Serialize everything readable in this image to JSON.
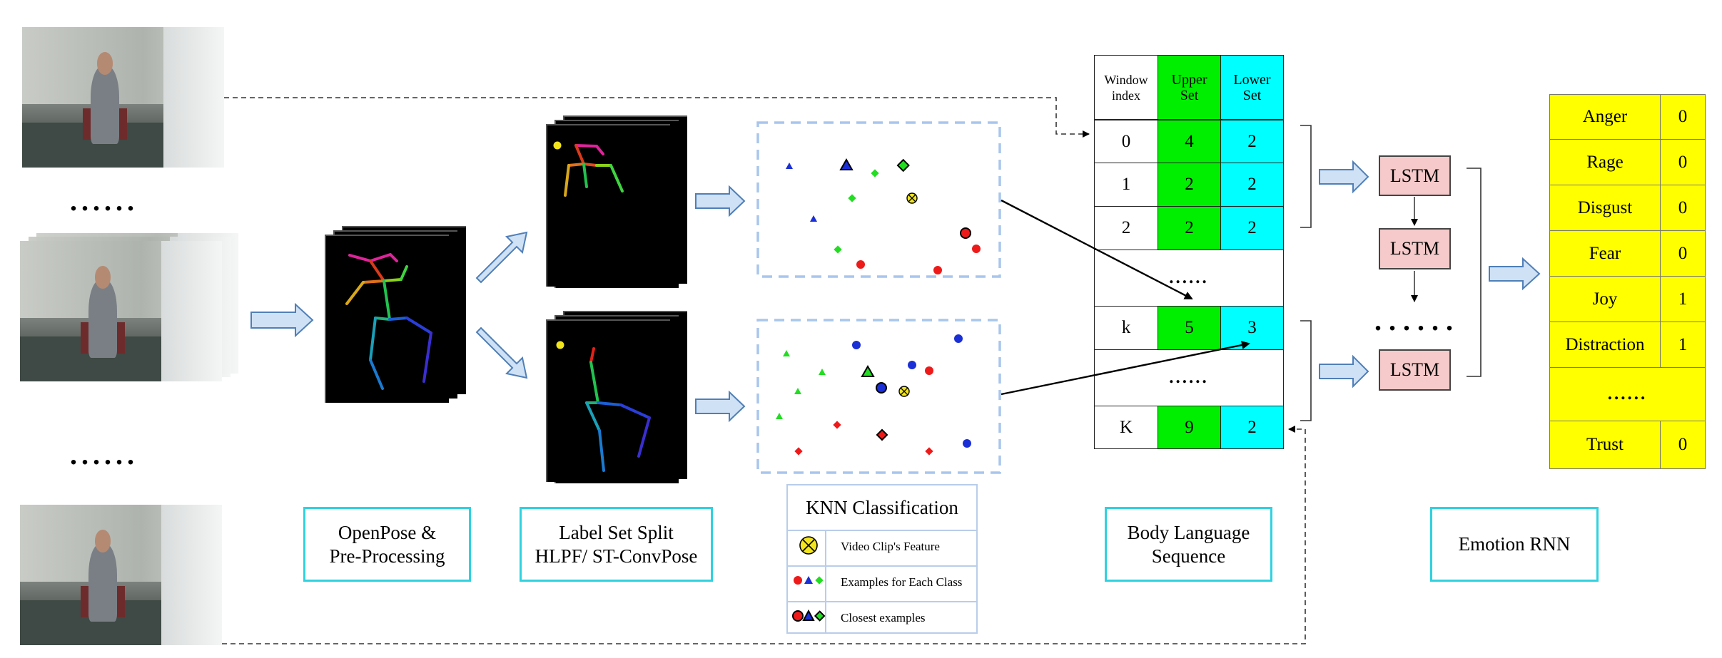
{
  "labels": {
    "openpose": [
      "OpenPose &",
      "Pre-Processing"
    ],
    "label_split": [
      "Label Set Split",
      "HLPF/ ST-ConvPose"
    ],
    "knn_title": "KNN Classification",
    "body_language": [
      "Body Language",
      "Sequence"
    ],
    "emotion_rnn": "Emotion RNN"
  },
  "knn_legend": [
    {
      "icon": "feature-icon",
      "text": "Video Clip's Feature"
    },
    {
      "icon": "class-examples-icon",
      "text": "Examples for Each Class"
    },
    {
      "icon": "closest-examples-icon",
      "text": "Closest examples"
    }
  ],
  "ellipsis": {
    "short": "......",
    "long": "......"
  },
  "table": {
    "headers": {
      "index": [
        "Window",
        "index"
      ],
      "upper": [
        "Upper",
        "Set"
      ],
      "lower": [
        "Lower",
        "Set"
      ]
    },
    "rows": [
      {
        "index": "0",
        "upper": "4",
        "lower": "2"
      },
      {
        "index": "1",
        "upper": "2",
        "lower": "2"
      },
      {
        "index": "2",
        "upper": "2",
        "lower": "2"
      },
      {
        "index": "",
        "upper": "",
        "lower": "",
        "ellipsis": "......"
      },
      {
        "index": "k",
        "upper": "5",
        "lower": "3"
      },
      {
        "index": "",
        "upper": "",
        "lower": "",
        "ellipsis": "......"
      },
      {
        "index": "K",
        "upper": "9",
        "lower": "2"
      }
    ]
  },
  "lstm": {
    "label": "LSTM"
  },
  "emotions": [
    {
      "name": "Anger",
      "value": "0"
    },
    {
      "name": "Rage",
      "value": "0"
    },
    {
      "name": "Disgust",
      "value": "0"
    },
    {
      "name": "Fear",
      "value": "0"
    },
    {
      "name": "Joy",
      "value": "1"
    },
    {
      "name": "Distraction",
      "value": "1"
    },
    {
      "name": "......",
      "value": ""
    },
    {
      "name": "Trust",
      "value": "0"
    }
  ],
  "colors": {
    "cyan_border": "#2fd2e0",
    "green": "#00ee00",
    "cyan": "#00ffff",
    "yellow": "#ffff00",
    "lstm": "#f6caca",
    "arrow_fill": "#cfe1f4",
    "arrow_stroke": "#4f7fb8",
    "dash_box": "#a9c6ec"
  }
}
